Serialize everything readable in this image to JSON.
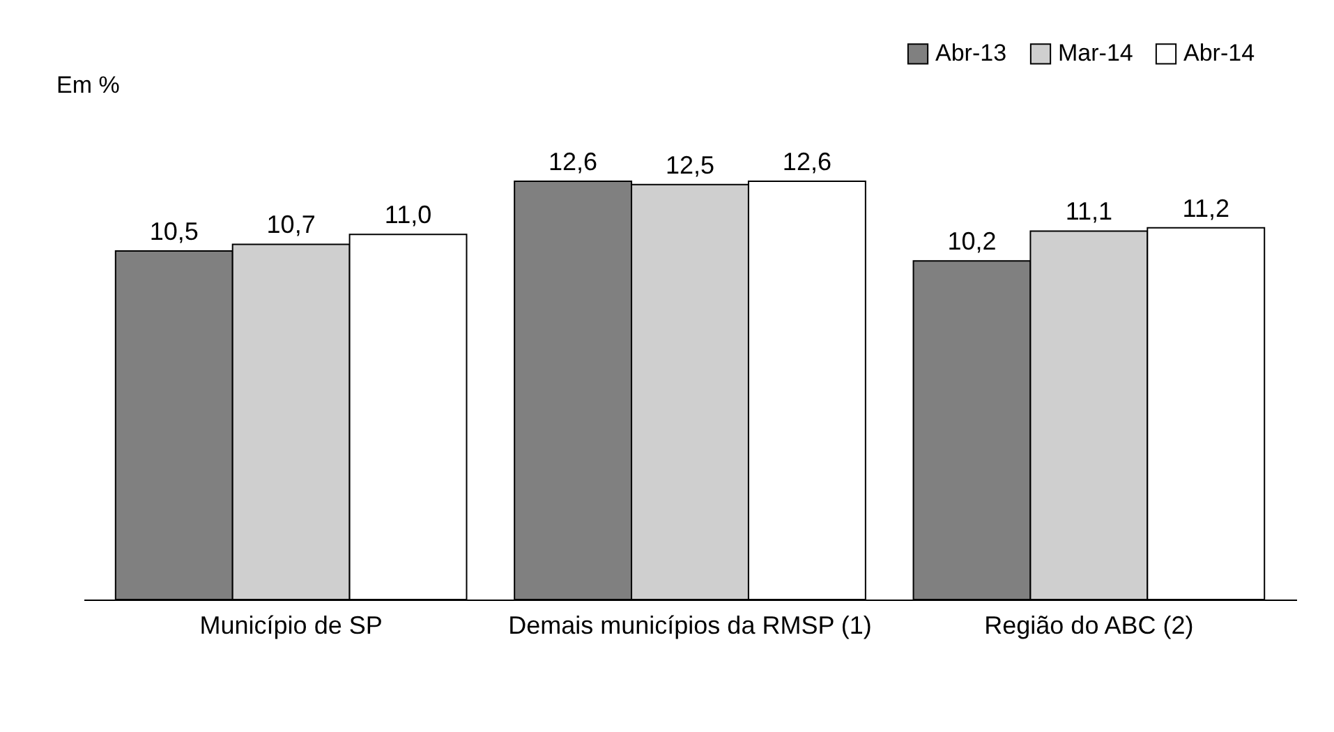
{
  "chart_data": {
    "type": "bar",
    "ylabel": "Em %",
    "categories": [
      "Município de SP",
      "Demais municípios da RMSP (1)",
      "Região do ABC (2)"
    ],
    "series": [
      {
        "name": "Abr-13",
        "color": "#808080",
        "values": [
          10.5,
          12.6,
          10.2
        ],
        "value_labels": [
          "10,5",
          "12,6",
          "10,2"
        ]
      },
      {
        "name": "Mar-14",
        "color": "#cfcfcf",
        "values": [
          10.7,
          12.5,
          11.1
        ],
        "value_labels": [
          "10,7",
          "12,5",
          "11,1"
        ]
      },
      {
        "name": "Abr-14",
        "color": "#ffffff",
        "values": [
          11.0,
          12.6,
          11.2
        ],
        "value_labels": [
          "11,0",
          "12,6",
          "11,2"
        ]
      }
    ],
    "tick_labels": "x",
    "legend": "top right"
  }
}
